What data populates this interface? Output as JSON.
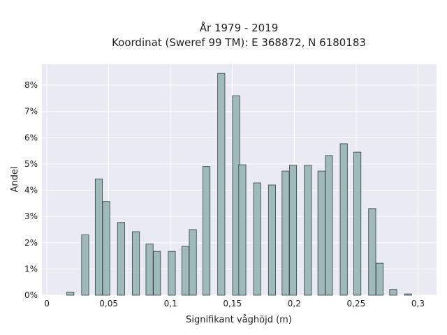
{
  "chart_data": {
    "type": "bar",
    "title": "År 1979 - 2019",
    "subtitle": "Koordinat (Sweref 99 TM): E 368872, N 6180183",
    "xlabel": "Signifikant våghöjd (m)",
    "ylabel": "Andel",
    "xlim": [
      -0.004,
      0.315
    ],
    "ylim": [
      0,
      8.8
    ],
    "x_ticks": [
      {
        "value": 0,
        "label": "0"
      },
      {
        "value": 0.05,
        "label": "0,05"
      },
      {
        "value": 0.1,
        "label": "0,1"
      },
      {
        "value": 0.15,
        "label": "0,15"
      },
      {
        "value": 0.2,
        "label": "0,2"
      },
      {
        "value": 0.25,
        "label": "0,25"
      },
      {
        "value": 0.3,
        "label": "0,3"
      }
    ],
    "y_ticks": [
      {
        "value": 0,
        "label": "0%"
      },
      {
        "value": 1,
        "label": "1%"
      },
      {
        "value": 2,
        "label": "2%"
      },
      {
        "value": 3,
        "label": "3%"
      },
      {
        "value": 4,
        "label": "4%"
      },
      {
        "value": 5,
        "label": "5%"
      },
      {
        "value": 6,
        "label": "6%"
      },
      {
        "value": 7,
        "label": "7%"
      },
      {
        "value": 8,
        "label": "8%"
      }
    ],
    "bar_width": 0.0058,
    "bars": [
      {
        "x": 0.019,
        "value": 0.12
      },
      {
        "x": 0.031,
        "value": 2.3
      },
      {
        "x": 0.042,
        "value": 4.43
      },
      {
        "x": 0.048,
        "value": 3.57
      },
      {
        "x": 0.06,
        "value": 2.77
      },
      {
        "x": 0.072,
        "value": 2.42
      },
      {
        "x": 0.083,
        "value": 1.95
      },
      {
        "x": 0.089,
        "value": 1.67
      },
      {
        "x": 0.101,
        "value": 1.67
      },
      {
        "x": 0.112,
        "value": 1.86
      },
      {
        "x": 0.118,
        "value": 2.5
      },
      {
        "x": 0.129,
        "value": 4.9
      },
      {
        "x": 0.141,
        "value": 8.45
      },
      {
        "x": 0.153,
        "value": 7.6
      },
      {
        "x": 0.158,
        "value": 4.97
      },
      {
        "x": 0.17,
        "value": 4.28
      },
      {
        "x": 0.182,
        "value": 4.2
      },
      {
        "x": 0.193,
        "value": 4.73
      },
      {
        "x": 0.199,
        "value": 4.95
      },
      {
        "x": 0.211,
        "value": 4.95
      },
      {
        "x": 0.222,
        "value": 4.73
      },
      {
        "x": 0.228,
        "value": 5.32
      },
      {
        "x": 0.24,
        "value": 5.77
      },
      {
        "x": 0.251,
        "value": 5.45
      },
      {
        "x": 0.263,
        "value": 3.3
      },
      {
        "x": 0.269,
        "value": 1.22
      },
      {
        "x": 0.28,
        "value": 0.22
      },
      {
        "x": 0.292,
        "value": 0.05
      }
    ],
    "grid": true,
    "colors": {
      "bar_fill": "#a0b9b9",
      "bar_edge": "#2f3f3f",
      "plot_background": "#eaeaf2",
      "grid": "#ffffff"
    }
  }
}
